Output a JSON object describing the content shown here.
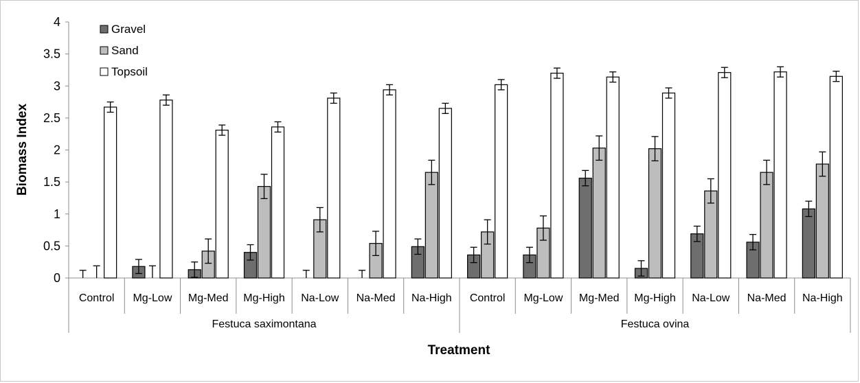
{
  "chart_data": {
    "type": "bar",
    "title": "",
    "xlabel": "Treatment",
    "ylabel": "Biomass Index",
    "ylim": [
      0,
      4
    ],
    "yticks": [
      0,
      0.5,
      1,
      1.5,
      2,
      2.5,
      3,
      3.5,
      4
    ],
    "ytick_labels": [
      "0",
      "0.5",
      "1",
      "1.5",
      "2",
      "2.5",
      "3",
      "3.5",
      "4"
    ],
    "grid": false,
    "legend_position": "top-left",
    "groups": [
      {
        "name": "Festuca saximontana",
        "categories": [
          "Control",
          "Mg-Low",
          "Mg-Med",
          "Mg-High",
          "Na-Low",
          "Na-Med",
          "Na-High"
        ]
      },
      {
        "name": "Festuca ovina",
        "categories": [
          "Control",
          "Mg-Low",
          "Mg-Med",
          "Mg-High",
          "Na-Low",
          "Na-Med",
          "Na-High"
        ]
      }
    ],
    "categories": [
      "Control",
      "Mg-Low",
      "Mg-Med",
      "Mg-High",
      "Na-Low",
      "Na-Med",
      "Na-High",
      "Control",
      "Mg-Low",
      "Mg-Med",
      "Mg-High",
      "Na-Low",
      "Na-Med",
      "Na-High"
    ],
    "series": [
      {
        "name": "Gravel",
        "color": "#6e6e6e",
        "values": [
          0,
          0.18,
          0.13,
          0.4,
          0,
          0,
          0.49,
          0.36,
          0.36,
          1.56,
          0.15,
          0.69,
          0.56,
          1.08
        ],
        "errors": [
          0.12,
          0.11,
          0.12,
          0.12,
          0.12,
          0.12,
          0.12,
          0.12,
          0.12,
          0.12,
          0.12,
          0.12,
          0.12,
          0.12
        ]
      },
      {
        "name": "Sand",
        "color": "#bdbdbd",
        "values": [
          0,
          0,
          0.42,
          1.43,
          0.91,
          0.54,
          1.65,
          0.72,
          0.78,
          2.03,
          2.02,
          1.36,
          1.65,
          1.78
        ],
        "errors": [
          0.19,
          0.19,
          0.19,
          0.19,
          0.19,
          0.19,
          0.19,
          0.19,
          0.19,
          0.19,
          0.19,
          0.19,
          0.19,
          0.19
        ]
      },
      {
        "name": "Topsoil",
        "color": "#ffffff",
        "values": [
          2.67,
          2.78,
          2.31,
          2.36,
          2.81,
          2.94,
          2.65,
          3.02,
          3.2,
          3.14,
          2.89,
          3.21,
          3.22,
          3.15
        ],
        "errors": [
          0.08,
          0.08,
          0.08,
          0.08,
          0.08,
          0.08,
          0.08,
          0.08,
          0.08,
          0.08,
          0.08,
          0.08,
          0.08,
          0.08
        ]
      }
    ]
  }
}
